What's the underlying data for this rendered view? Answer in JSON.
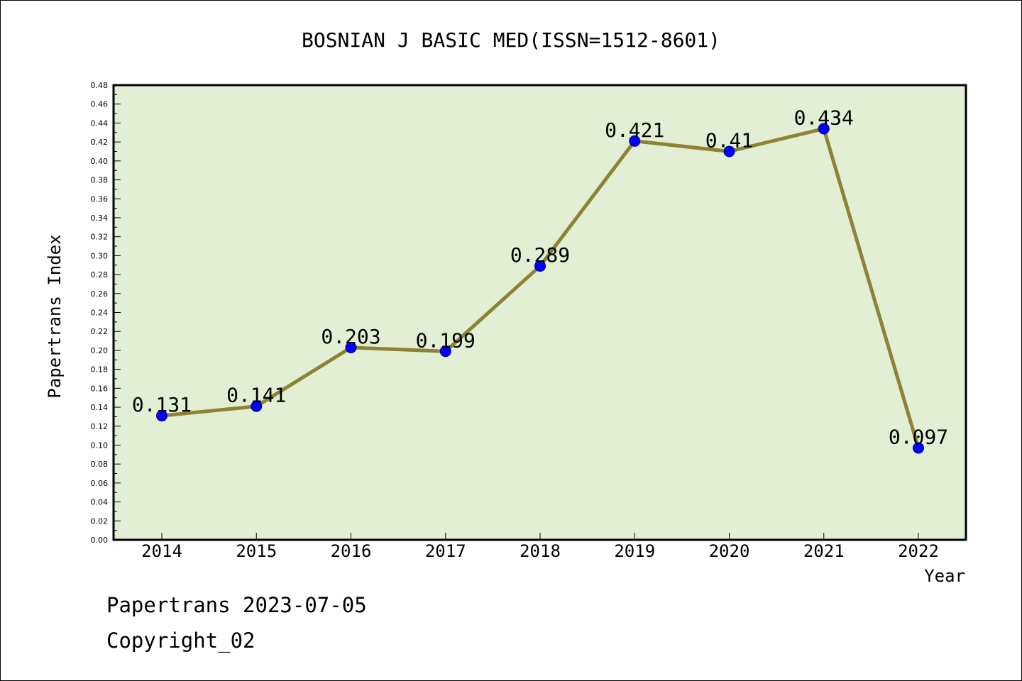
{
  "chart_data": {
    "type": "line",
    "title": "BOSNIAN J BASIC MED(ISSN=1512-8601)",
    "xlabel": "Year",
    "ylabel": "Papertrans Index",
    "categories": [
      "2014",
      "2015",
      "2016",
      "2017",
      "2018",
      "2019",
      "2020",
      "2021",
      "2022"
    ],
    "series": [
      {
        "name": "Papertrans Index",
        "values": [
          0.131,
          0.141,
          0.203,
          0.199,
          0.289,
          0.421,
          0.41,
          0.434,
          0.097
        ],
        "labels": [
          "0.131",
          "0.141",
          "0.203",
          "0.199",
          "0.289",
          "0.421",
          "0.41",
          "0.434",
          "0.097"
        ]
      }
    ],
    "ylim": [
      0,
      0.48
    ],
    "ytick_step": 0.02,
    "yticks": [
      "0.00",
      "0.02",
      "0.04",
      "0.06",
      "0.08",
      "0.10",
      "0.12",
      "0.14",
      "0.16",
      "0.18",
      "0.20",
      "0.22",
      "0.24",
      "0.26",
      "0.28",
      "0.30",
      "0.32",
      "0.34",
      "0.36",
      "0.38",
      "0.40",
      "0.42",
      "0.44",
      "0.46",
      "0.48"
    ],
    "grid": false,
    "colors": {
      "plot_background": "#e2efd4",
      "line": "#8c8334",
      "marker": "#0000ff",
      "axis": "#000000"
    }
  },
  "footer": {
    "line1": "Papertrans 2023-07-05",
    "line2": "Copyright_02"
  }
}
